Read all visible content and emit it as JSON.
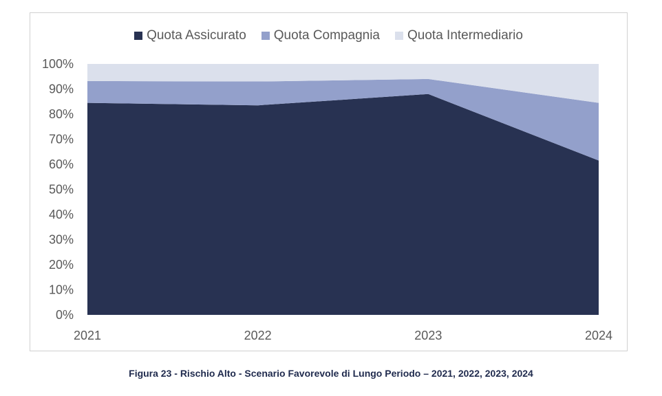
{
  "chart_data": {
    "type": "area",
    "stacked": true,
    "x": [
      "2021",
      "2022",
      "2023",
      "2024"
    ],
    "series": [
      {
        "name": "Quota Assicurato",
        "values": [
          84.5,
          83.5,
          88,
          61.5
        ],
        "color": "#283252"
      },
      {
        "name": "Quota Compagnia",
        "values": [
          8.7,
          9.5,
          6,
          23
        ],
        "color": "#93a0cb"
      },
      {
        "name": "Quota Intermediario",
        "values": [
          6.8,
          7,
          6,
          15.5
        ],
        "color": "#dbe0ec"
      }
    ],
    "ylim": [
      0,
      100
    ],
    "yticks": [
      "0%",
      "10%",
      "20%",
      "30%",
      "40%",
      "50%",
      "60%",
      "70%",
      "80%",
      "90%",
      "100%"
    ],
    "legend_position": "top",
    "grid": false
  },
  "caption": "Figura 23 - Rischio Alto - Scenario Favorevole di Lungo Periodo – 2021, 2022, 2023, 2024"
}
